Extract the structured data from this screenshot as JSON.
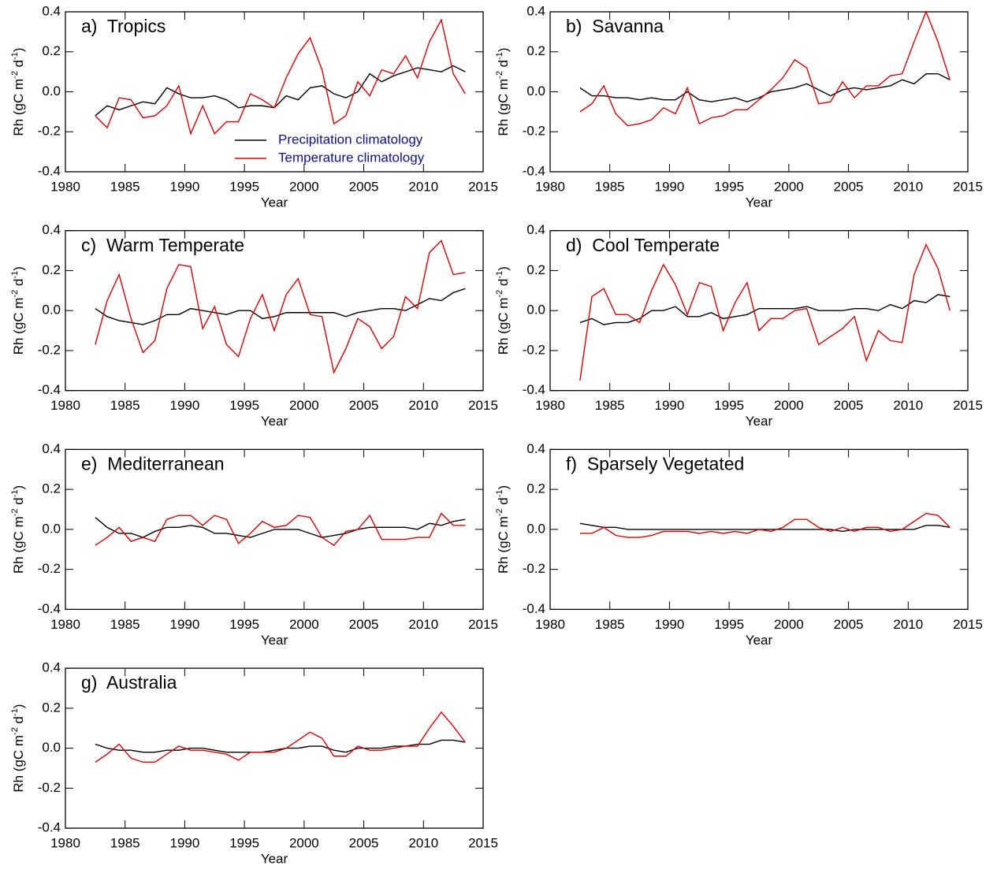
{
  "chart_data": [
    {
      "type": "line",
      "title": "a)  Tropics",
      "xlabel": "Year",
      "ylabel": [
        "Rh (gC m",
        "-2",
        " d",
        "-1",
        ")"
      ],
      "legend": "lower right",
      "x": [
        1982.5,
        1983.5,
        1984.5,
        1985.5,
        1986.5,
        1987.5,
        1988.5,
        1989.5,
        1990.5,
        1991.5,
        1992.5,
        1993.5,
        1994.5,
        1995.5,
        1996.5,
        1997.5,
        1998.5,
        1999.5,
        2000.5,
        2001.5,
        2002.5,
        2003.5,
        2004.5,
        2005.5,
        2006.5,
        2007.5,
        2008.5,
        2009.5,
        2010.5,
        2011.5,
        2012.5,
        2013.5
      ],
      "xlim": [
        1980,
        2015
      ],
      "xticks": [
        1980,
        1985,
        1990,
        1995,
        2000,
        2005,
        2010,
        2015
      ],
      "ylim": [
        -0.4,
        0.4
      ],
      "yticks": [
        -0.4,
        -0.2,
        {
          "value": 0,
          "label": "0.0"
        },
        0.2,
        0.4
      ],
      "series": [
        {
          "name": "Precipitation climatology",
          "color": "#000000",
          "values": [
            -0.12,
            -0.07,
            -0.09,
            -0.07,
            -0.05,
            -0.06,
            0.02,
            -0.01,
            -0.03,
            -0.03,
            -0.02,
            -0.04,
            -0.08,
            -0.07,
            -0.07,
            -0.08,
            -0.02,
            -0.04,
            0.02,
            0.03,
            -0.01,
            -0.03,
            0.0,
            0.09,
            0.05,
            0.08,
            0.1,
            0.12,
            0.11,
            0.1,
            0.13,
            0.1
          ]
        },
        {
          "name": "Temperature climatology",
          "color": "#e00000",
          "values": [
            -0.12,
            -0.18,
            -0.03,
            -0.04,
            -0.13,
            -0.12,
            -0.07,
            0.03,
            -0.21,
            -0.07,
            -0.21,
            -0.15,
            -0.15,
            -0.01,
            -0.04,
            -0.08,
            0.07,
            0.19,
            0.27,
            0.11,
            -0.16,
            -0.12,
            0.05,
            -0.02,
            0.11,
            0.09,
            0.18,
            0.07,
            0.25,
            0.36,
            0.09,
            -0.01
          ]
        }
      ]
    },
    {
      "type": "line",
      "title": "b)  Savanna",
      "xlabel": "Year",
      "ylabel": [
        "Rh (gC m",
        "-2",
        " d",
        "-1",
        ")"
      ],
      "x": [
        1982.5,
        1983.5,
        1984.5,
        1985.5,
        1986.5,
        1987.5,
        1988.5,
        1989.5,
        1990.5,
        1991.5,
        1992.5,
        1993.5,
        1994.5,
        1995.5,
        1996.5,
        1997.5,
        1998.5,
        1999.5,
        2000.5,
        2001.5,
        2002.5,
        2003.5,
        2004.5,
        2005.5,
        2006.5,
        2007.5,
        2008.5,
        2009.5,
        2010.5,
        2011.5,
        2012.5,
        2013.5
      ],
      "xlim": [
        1980,
        2015
      ],
      "xticks": [
        1980,
        1985,
        1990,
        1995,
        2000,
        2005,
        2010,
        2015
      ],
      "ylim": [
        -0.4,
        0.4
      ],
      "yticks": [
        -0.4,
        -0.2,
        {
          "value": 0,
          "label": "0.0"
        },
        0.2,
        0.4
      ],
      "series": [
        {
          "color": "#000000",
          "values": [
            0.02,
            -0.02,
            -0.02,
            -0.03,
            -0.03,
            -0.04,
            -0.03,
            -0.04,
            -0.04,
            0.0,
            -0.04,
            -0.05,
            -0.04,
            -0.03,
            -0.05,
            -0.03,
            0.0,
            0.01,
            0.02,
            0.04,
            0.01,
            -0.02,
            0.01,
            0.02,
            0.01,
            0.02,
            0.03,
            0.06,
            0.04,
            0.09,
            0.09,
            0.06
          ]
        },
        {
          "color": "#e00000",
          "values": [
            -0.1,
            -0.06,
            0.03,
            -0.11,
            -0.17,
            -0.16,
            -0.14,
            -0.08,
            -0.11,
            0.02,
            -0.16,
            -0.13,
            -0.12,
            -0.09,
            -0.09,
            -0.04,
            0.01,
            0.07,
            0.16,
            0.12,
            -0.06,
            -0.05,
            0.05,
            -0.03,
            0.03,
            0.03,
            0.08,
            0.09,
            0.25,
            0.4,
            0.25,
            0.06
          ]
        }
      ]
    },
    {
      "type": "line",
      "title": "c)  Warm Temperate",
      "xlabel": "Year",
      "ylabel": [
        "Rh (gC m",
        "-2",
        " d",
        "-1",
        ")"
      ],
      "x": [
        1982.5,
        1983.5,
        1984.5,
        1985.5,
        1986.5,
        1987.5,
        1988.5,
        1989.5,
        1990.5,
        1991.5,
        1992.5,
        1993.5,
        1994.5,
        1995.5,
        1996.5,
        1997.5,
        1998.5,
        1999.5,
        2000.5,
        2001.5,
        2002.5,
        2003.5,
        2004.5,
        2005.5,
        2006.5,
        2007.5,
        2008.5,
        2009.5,
        2010.5,
        2011.5,
        2012.5,
        2013.5
      ],
      "xlim": [
        1980,
        2015
      ],
      "xticks": [
        1980,
        1985,
        1990,
        1995,
        2000,
        2005,
        2010,
        2015
      ],
      "ylim": [
        -0.4,
        0.4
      ],
      "yticks": [
        -0.4,
        -0.2,
        {
          "value": 0,
          "label": "0.0"
        },
        0.2,
        0.4
      ],
      "series": [
        {
          "color": "#000000",
          "values": [
            0.01,
            -0.03,
            -0.05,
            -0.06,
            -0.07,
            -0.05,
            -0.02,
            -0.02,
            0.01,
            0.0,
            -0.01,
            -0.02,
            0.0,
            0.0,
            -0.04,
            -0.03,
            -0.01,
            -0.01,
            -0.01,
            -0.01,
            -0.01,
            -0.03,
            -0.01,
            0.0,
            0.01,
            0.01,
            0.0,
            0.03,
            0.06,
            0.05,
            0.09,
            0.11
          ]
        },
        {
          "color": "#e00000",
          "values": [
            -0.17,
            0.05,
            0.18,
            -0.04,
            -0.21,
            -0.15,
            0.11,
            0.23,
            0.22,
            -0.09,
            0.02,
            -0.17,
            -0.23,
            -0.04,
            0.08,
            -0.1,
            0.08,
            0.16,
            -0.02,
            -0.03,
            -0.31,
            -0.19,
            -0.04,
            -0.08,
            -0.19,
            -0.13,
            0.07,
            0.01,
            0.29,
            0.35,
            0.18,
            0.19
          ]
        }
      ]
    },
    {
      "type": "line",
      "title": "d)  Cool Temperate",
      "xlabel": "Year",
      "ylabel": [
        "Rh (gC m",
        "-2",
        " d",
        "-1",
        ")"
      ],
      "x": [
        1982.5,
        1983.5,
        1984.5,
        1985.5,
        1986.5,
        1987.5,
        1988.5,
        1989.5,
        1990.5,
        1991.5,
        1992.5,
        1993.5,
        1994.5,
        1995.5,
        1996.5,
        1997.5,
        1998.5,
        1999.5,
        2000.5,
        2001.5,
        2002.5,
        2003.5,
        2004.5,
        2005.5,
        2006.5,
        2007.5,
        2008.5,
        2009.5,
        2010.5,
        2011.5,
        2012.5,
        2013.5
      ],
      "xlim": [
        1980,
        2015
      ],
      "xticks": [
        1980,
        1985,
        1990,
        1995,
        2000,
        2005,
        2010,
        2015
      ],
      "ylim": [
        -0.4,
        0.4
      ],
      "yticks": [
        -0.4,
        -0.2,
        {
          "value": 0,
          "label": "0.0"
        },
        0.2,
        0.4
      ],
      "series": [
        {
          "color": "#000000",
          "values": [
            -0.06,
            -0.04,
            -0.07,
            -0.06,
            -0.06,
            -0.04,
            0.0,
            0.0,
            0.02,
            -0.03,
            -0.03,
            -0.01,
            -0.04,
            -0.03,
            -0.02,
            0.01,
            0.01,
            0.01,
            0.01,
            0.02,
            0.0,
            0.0,
            0.0,
            0.01,
            0.01,
            0.0,
            0.03,
            0.01,
            0.05,
            0.04,
            0.08,
            0.07
          ]
        },
        {
          "color": "#e00000",
          "values": [
            -0.35,
            0.07,
            0.11,
            -0.02,
            -0.02,
            -0.06,
            0.1,
            0.23,
            0.13,
            -0.02,
            0.14,
            0.12,
            -0.1,
            0.04,
            0.14,
            -0.1,
            -0.04,
            -0.04,
            0.0,
            0.01,
            -0.17,
            -0.13,
            -0.09,
            -0.03,
            -0.25,
            -0.1,
            -0.15,
            -0.16,
            0.18,
            0.33,
            0.21,
            0.0
          ]
        }
      ]
    },
    {
      "type": "line",
      "title": "e)  Mediterranean",
      "xlabel": "Year",
      "ylabel": [
        "Rh (gC m",
        "-2",
        " d",
        "-1",
        ")"
      ],
      "x": [
        1982.5,
        1983.5,
        1984.5,
        1985.5,
        1986.5,
        1987.5,
        1988.5,
        1989.5,
        1990.5,
        1991.5,
        1992.5,
        1993.5,
        1994.5,
        1995.5,
        1996.5,
        1997.5,
        1998.5,
        1999.5,
        2000.5,
        2001.5,
        2002.5,
        2003.5,
        2004.5,
        2005.5,
        2006.5,
        2007.5,
        2008.5,
        2009.5,
        2010.5,
        2011.5,
        2012.5,
        2013.5
      ],
      "xlim": [
        1980,
        2015
      ],
      "xticks": [
        1980,
        1985,
        1990,
        1995,
        2000,
        2005,
        2010,
        2015
      ],
      "ylim": [
        -0.4,
        0.4
      ],
      "yticks": [
        -0.4,
        -0.2,
        {
          "value": 0,
          "label": "0.0"
        },
        0.2,
        0.4
      ],
      "series": [
        {
          "color": "#000000",
          "values": [
            0.06,
            0.01,
            -0.02,
            -0.02,
            -0.04,
            -0.01,
            0.01,
            0.01,
            0.02,
            0.01,
            -0.02,
            -0.02,
            -0.03,
            -0.04,
            -0.02,
            0.0,
            0.0,
            0.0,
            -0.02,
            -0.04,
            -0.03,
            -0.02,
            0.0,
            0.01,
            0.01,
            0.01,
            0.01,
            0.0,
            0.03,
            0.02,
            0.04,
            0.05
          ]
        },
        {
          "color": "#e00000",
          "values": [
            -0.08,
            -0.04,
            0.01,
            -0.06,
            -0.04,
            -0.06,
            0.05,
            0.07,
            0.07,
            0.02,
            0.07,
            0.05,
            -0.07,
            -0.02,
            0.04,
            0.01,
            0.02,
            0.07,
            0.06,
            -0.04,
            -0.08,
            -0.01,
            0.0,
            0.07,
            -0.05,
            -0.05,
            -0.05,
            -0.04,
            -0.04,
            0.08,
            0.02,
            0.02
          ]
        }
      ]
    },
    {
      "type": "line",
      "title": "f)  Sparsely Vegetated",
      "xlabel": "Year",
      "ylabel": [
        "Rh (gC m",
        "-2",
        " d",
        "-1",
        ")"
      ],
      "x": [
        1982.5,
        1983.5,
        1984.5,
        1985.5,
        1986.5,
        1987.5,
        1988.5,
        1989.5,
        1990.5,
        1991.5,
        1992.5,
        1993.5,
        1994.5,
        1995.5,
        1996.5,
        1997.5,
        1998.5,
        1999.5,
        2000.5,
        2001.5,
        2002.5,
        2003.5,
        2004.5,
        2005.5,
        2006.5,
        2007.5,
        2008.5,
        2009.5,
        2010.5,
        2011.5,
        2012.5,
        2013.5
      ],
      "xlim": [
        1980,
        2015
      ],
      "xticks": [
        1980,
        1985,
        1990,
        1995,
        2000,
        2005,
        2010,
        2015
      ],
      "ylim": [
        -0.4,
        0.4
      ],
      "yticks": [
        -0.4,
        -0.2,
        {
          "value": 0,
          "label": "0.0"
        },
        0.2,
        0.4
      ],
      "series": [
        {
          "color": "#000000",
          "values": [
            0.03,
            0.02,
            0.01,
            0.01,
            0.0,
            0.0,
            0.0,
            0.0,
            0.0,
            0.0,
            0.0,
            0.0,
            0.0,
            0.0,
            0.0,
            0.0,
            0.0,
            0.0,
            0.0,
            0.0,
            0.0,
            0.0,
            -0.01,
            0.0,
            0.0,
            0.0,
            0.0,
            0.0,
            0.0,
            0.02,
            0.02,
            0.01
          ]
        },
        {
          "color": "#e00000",
          "values": [
            -0.02,
            -0.02,
            0.01,
            -0.03,
            -0.04,
            -0.04,
            -0.03,
            -0.01,
            -0.01,
            -0.01,
            -0.02,
            -0.01,
            -0.02,
            -0.01,
            -0.02,
            0.0,
            -0.01,
            0.01,
            0.05,
            0.05,
            0.01,
            -0.01,
            0.01,
            -0.01,
            0.01,
            0.01,
            -0.01,
            0.0,
            0.04,
            0.08,
            0.07,
            0.01
          ]
        }
      ]
    },
    {
      "type": "line",
      "title": "g)  Australia",
      "xlabel": "Year",
      "ylabel": [
        "Rh (gC m",
        "-2",
        " d",
        "-1",
        ")"
      ],
      "x": [
        1982.5,
        1983.5,
        1984.5,
        1985.5,
        1986.5,
        1987.5,
        1988.5,
        1989.5,
        1990.5,
        1991.5,
        1992.5,
        1993.5,
        1994.5,
        1995.5,
        1996.5,
        1997.5,
        1998.5,
        1999.5,
        2000.5,
        2001.5,
        2002.5,
        2003.5,
        2004.5,
        2005.5,
        2006.5,
        2007.5,
        2008.5,
        2009.5,
        2010.5,
        2011.5,
        2012.5,
        2013.5
      ],
      "xlim": [
        1980,
        2015
      ],
      "xticks": [
        1980,
        1985,
        1990,
        1995,
        2000,
        2005,
        2010,
        2015
      ],
      "ylim": [
        -0.4,
        0.4
      ],
      "yticks": [
        -0.4,
        -0.2,
        {
          "value": 0,
          "label": "0.0"
        },
        0.2,
        0.4
      ],
      "series": [
        {
          "color": "#000000",
          "values": [
            0.02,
            0.0,
            -0.01,
            -0.01,
            -0.02,
            -0.02,
            -0.01,
            -0.01,
            0.0,
            0.0,
            -0.01,
            -0.02,
            -0.02,
            -0.02,
            -0.02,
            -0.01,
            0.0,
            0.0,
            0.01,
            0.01,
            -0.01,
            -0.02,
            0.0,
            0.0,
            0.0,
            0.01,
            0.01,
            0.02,
            0.02,
            0.04,
            0.04,
            0.03
          ]
        },
        {
          "color": "#e00000",
          "values": [
            -0.07,
            -0.03,
            0.02,
            -0.05,
            -0.07,
            -0.07,
            -0.03,
            0.01,
            -0.01,
            -0.01,
            -0.02,
            -0.03,
            -0.06,
            -0.02,
            -0.02,
            -0.02,
            0.0,
            0.04,
            0.08,
            0.05,
            -0.04,
            -0.04,
            0.01,
            -0.01,
            -0.01,
            0.0,
            0.01,
            0.01,
            0.1,
            0.18,
            0.11,
            0.03
          ]
        }
      ]
    }
  ]
}
